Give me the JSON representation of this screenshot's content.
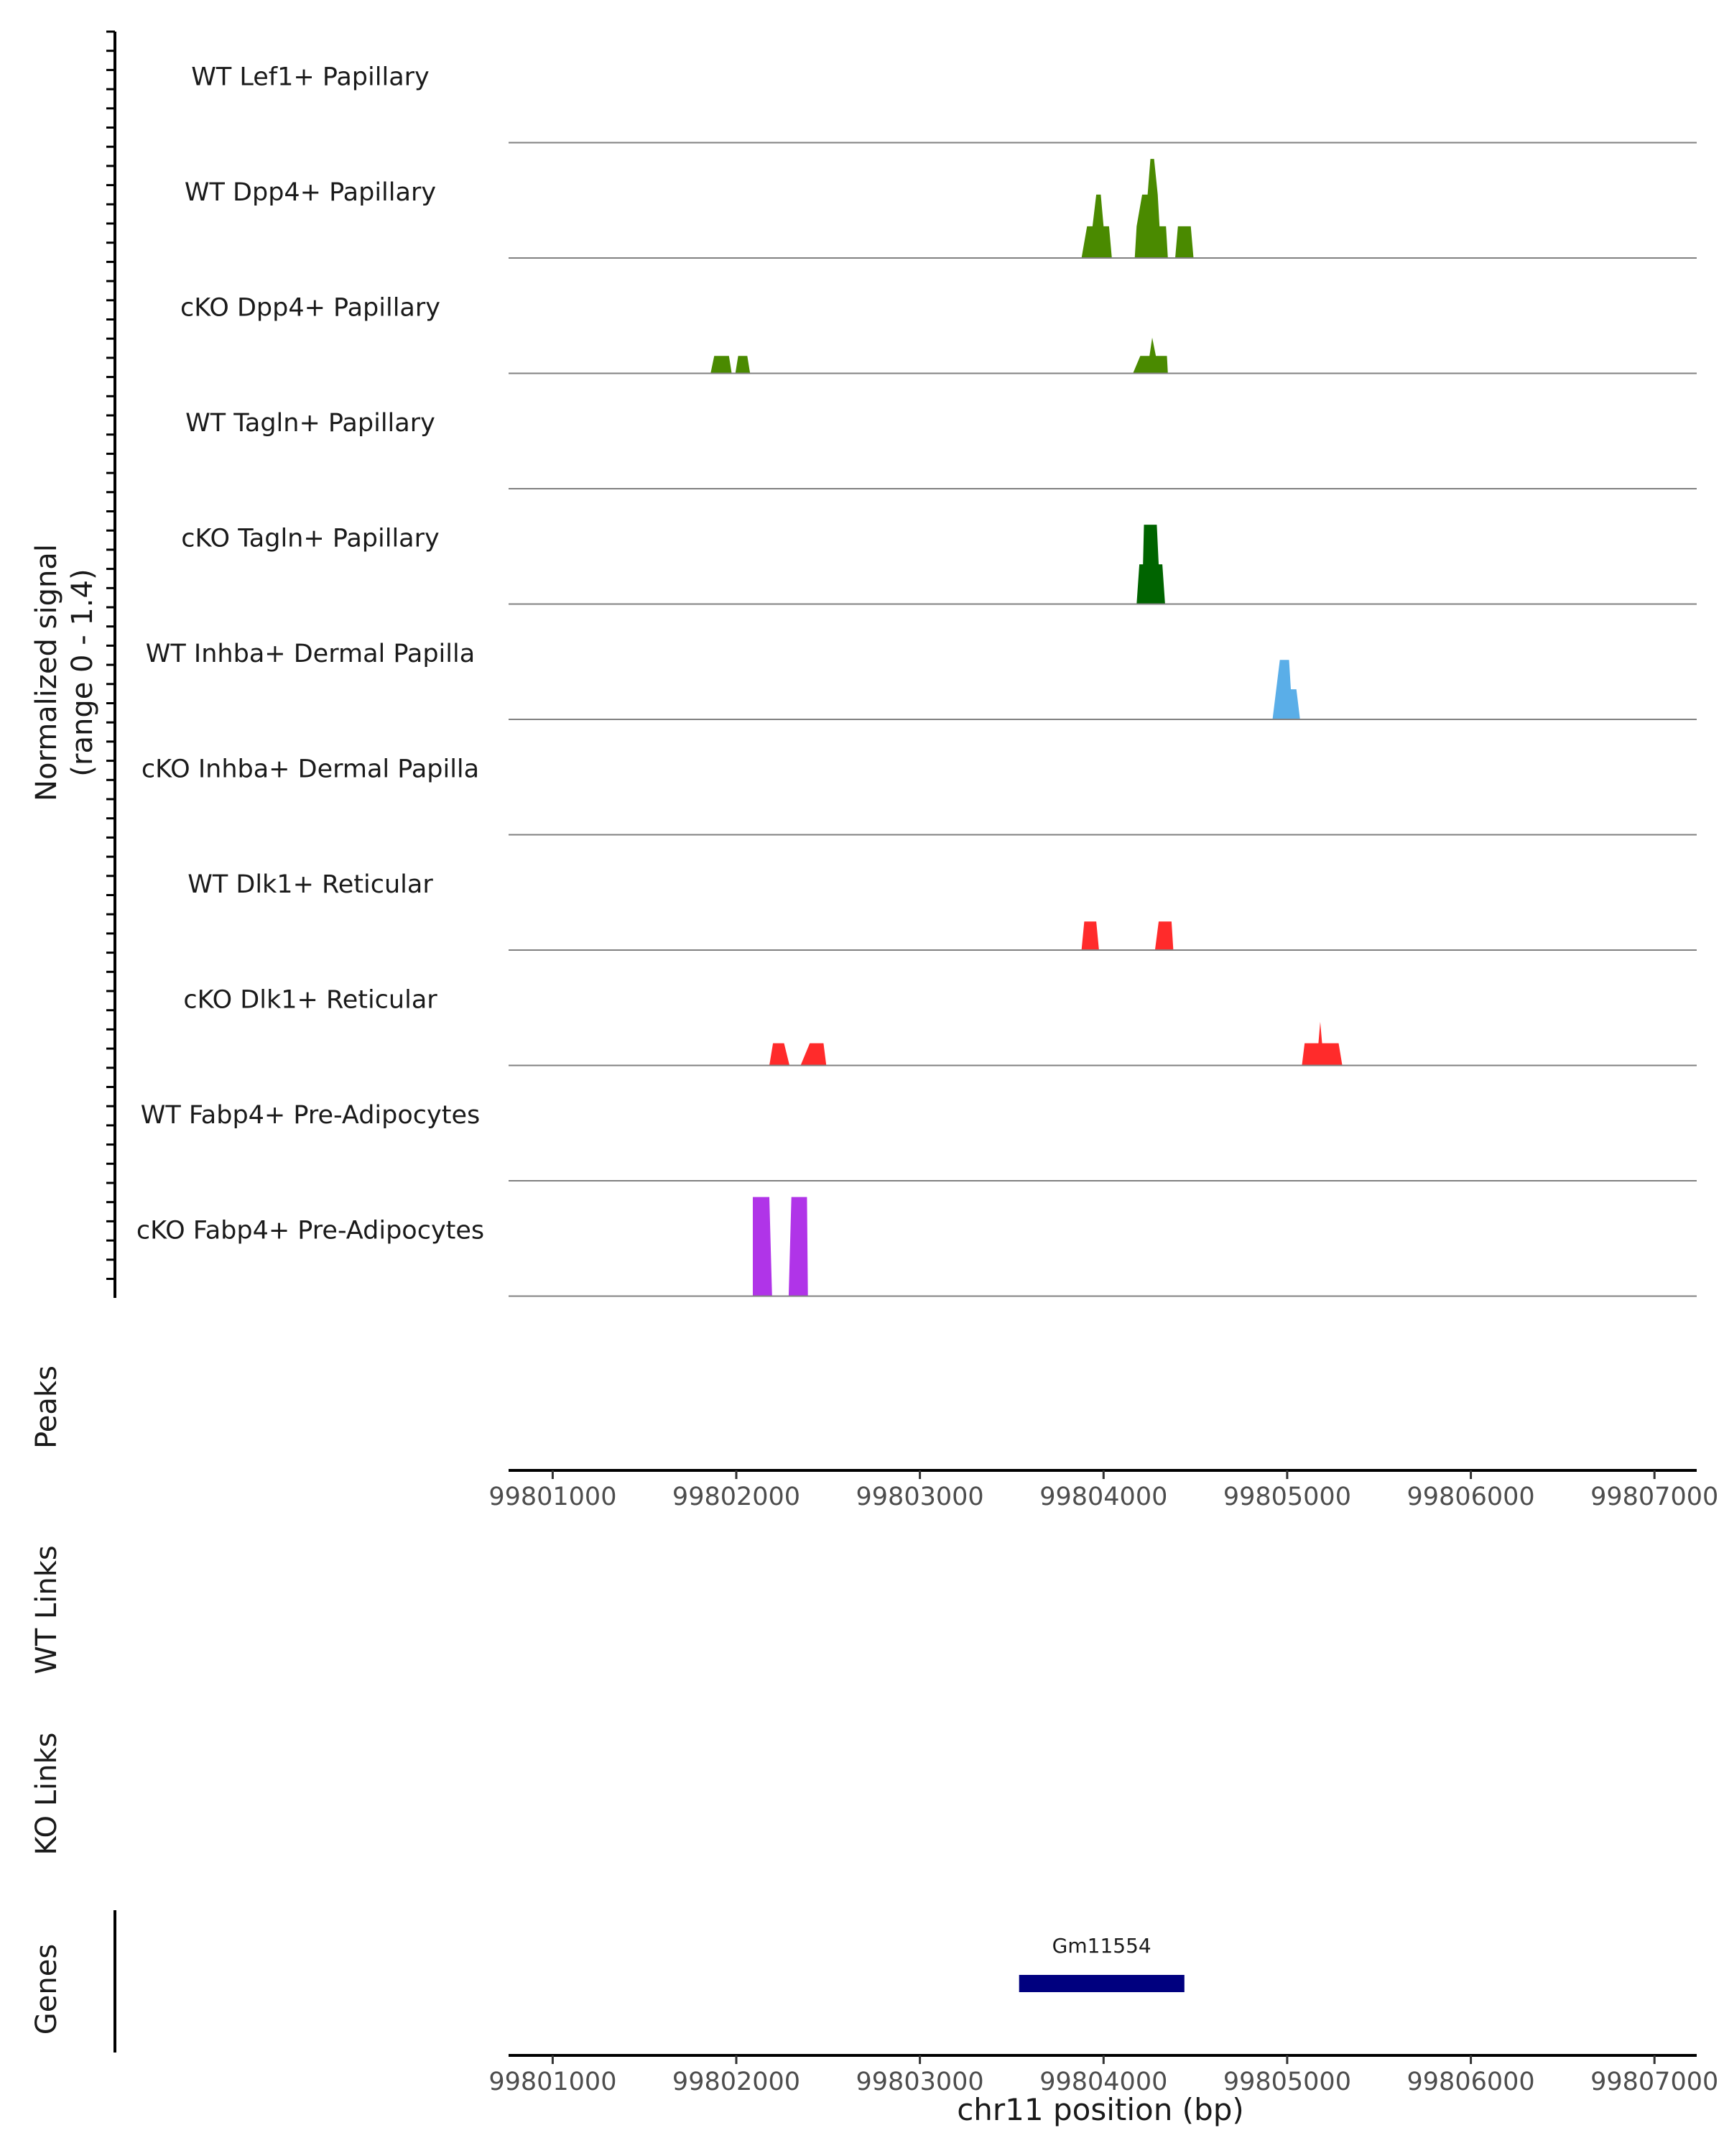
{
  "chart_data": {
    "type": "area",
    "subtype": "genome-coverage-plot",
    "chromosome": "chr11",
    "xlabel": "chr11 position (bp)",
    "xlim": [
      99800760,
      99807230
    ],
    "x_ticks": [
      99801000,
      99802000,
      99803000,
      99804000,
      99805000,
      99806000,
      99807000
    ],
    "x_tick_labels": [
      "99801000",
      "99802000",
      "99803000",
      "99804000",
      "99805000",
      "99806000",
      "99807000"
    ],
    "ylabel": "Normalized signal",
    "ylabel_range": "(range 0 - 1.4)",
    "ylim": [
      0,
      1.4
    ],
    "coverage_tracks": [
      {
        "name": "WT Lef1+ Papillary",
        "color": "#4a8a00",
        "points": []
      },
      {
        "name": "WT Dpp4+ Papillary",
        "color": "#4a8a00",
        "points": [
          [
            99803880,
            0
          ],
          [
            99803910,
            0.4
          ],
          [
            99803940,
            0.4
          ],
          [
            99803960,
            0.8
          ],
          [
            99803985,
            0.8
          ],
          [
            99804000,
            0.4
          ],
          [
            99804030,
            0.4
          ],
          [
            99804045,
            0
          ],
          [
            99804170,
            0
          ],
          [
            99804180,
            0.4
          ],
          [
            99804210,
            0.8
          ],
          [
            99804240,
            0.8
          ],
          [
            99804255,
            1.25
          ],
          [
            99804275,
            1.25
          ],
          [
            99804295,
            0.8
          ],
          [
            99804305,
            0.4
          ],
          [
            99804340,
            0.4
          ],
          [
            99804350,
            0
          ],
          [
            99804390,
            0
          ],
          [
            99804405,
            0.4
          ],
          [
            99804475,
            0.4
          ],
          [
            99804490,
            0
          ]
        ]
      },
      {
        "name": "cKO Dpp4+ Papillary",
        "color": "#4a8a00",
        "points": [
          [
            99801860,
            0
          ],
          [
            99801880,
            0.22
          ],
          [
            99801960,
            0.22
          ],
          [
            99801975,
            0
          ],
          [
            99801995,
            0
          ],
          [
            99802010,
            0.22
          ],
          [
            99802060,
            0.22
          ],
          [
            99802075,
            0
          ],
          [
            99804160,
            0
          ],
          [
            99804200,
            0.22
          ],
          [
            99804250,
            0.22
          ],
          [
            99804265,
            0.45
          ],
          [
            99804285,
            0.22
          ],
          [
            99804345,
            0.22
          ],
          [
            99804350,
            0
          ]
        ]
      },
      {
        "name": "WT Tagln+ Papillary",
        "color": "#006400",
        "points": []
      },
      {
        "name": "cKO Tagln+ Papillary",
        "color": "#006400",
        "points": [
          [
            99804180,
            0
          ],
          [
            99804195,
            0.5
          ],
          [
            99804215,
            0.5
          ],
          [
            99804220,
            1.0
          ],
          [
            99804290,
            1.0
          ],
          [
            99804300,
            0.5
          ],
          [
            99804320,
            0.5
          ],
          [
            99804335,
            0
          ]
        ]
      },
      {
        "name": "WT Inhba+ Dermal Papilla",
        "color": "#5aaee8",
        "points": [
          [
            99804920,
            0
          ],
          [
            99804960,
            0.75
          ],
          [
            99805010,
            0.75
          ],
          [
            99805020,
            0.38
          ],
          [
            99805050,
            0.38
          ],
          [
            99805070,
            0
          ]
        ]
      },
      {
        "name": "cKO Inhba+ Dermal Papilla",
        "color": "#5aaee8",
        "points": []
      },
      {
        "name": "WT Dlk1+ Reticular",
        "color": "#ff2b2b",
        "points": [
          [
            99803880,
            0
          ],
          [
            99803895,
            0.36
          ],
          [
            99803960,
            0.36
          ],
          [
            99803975,
            0
          ],
          [
            99804280,
            0
          ],
          [
            99804300,
            0.36
          ],
          [
            99804370,
            0.36
          ],
          [
            99804380,
            0
          ]
        ]
      },
      {
        "name": "cKO Dlk1+ Reticular",
        "color": "#ff2b2b",
        "points": [
          [
            99802180,
            0
          ],
          [
            99802200,
            0.28
          ],
          [
            99802260,
            0.28
          ],
          [
            99802290,
            0
          ],
          [
            99802350,
            0
          ],
          [
            99802400,
            0.28
          ],
          [
            99802475,
            0.28
          ],
          [
            99802490,
            0
          ],
          [
            99805080,
            0
          ],
          [
            99805095,
            0.28
          ],
          [
            99805170,
            0.28
          ],
          [
            99805180,
            0.55
          ],
          [
            99805190,
            0.28
          ],
          [
            99805280,
            0.28
          ],
          [
            99805300,
            0
          ]
        ]
      },
      {
        "name": "WT Fabp4+ Pre-Adipocytes",
        "color": "#b034e8",
        "points": []
      },
      {
        "name": "cKO Fabp4+ Pre-Adipocytes",
        "color": "#b034e8",
        "points": [
          [
            99802090,
            0
          ],
          [
            99802090,
            1.25
          ],
          [
            99802180,
            1.25
          ],
          [
            99802195,
            0
          ],
          [
            99802285,
            0
          ],
          [
            99802300,
            1.25
          ],
          [
            99802385,
            1.25
          ],
          [
            99802390,
            0
          ]
        ]
      }
    ],
    "section_labels": {
      "peaks": "Peaks",
      "wt_links": "WT Links",
      "ko_links": "KO Links",
      "genes": "Genes"
    },
    "genes": [
      {
        "name": "Gm11554",
        "start": 99803540,
        "end": 99804440,
        "color": "#00007f"
      }
    ]
  }
}
